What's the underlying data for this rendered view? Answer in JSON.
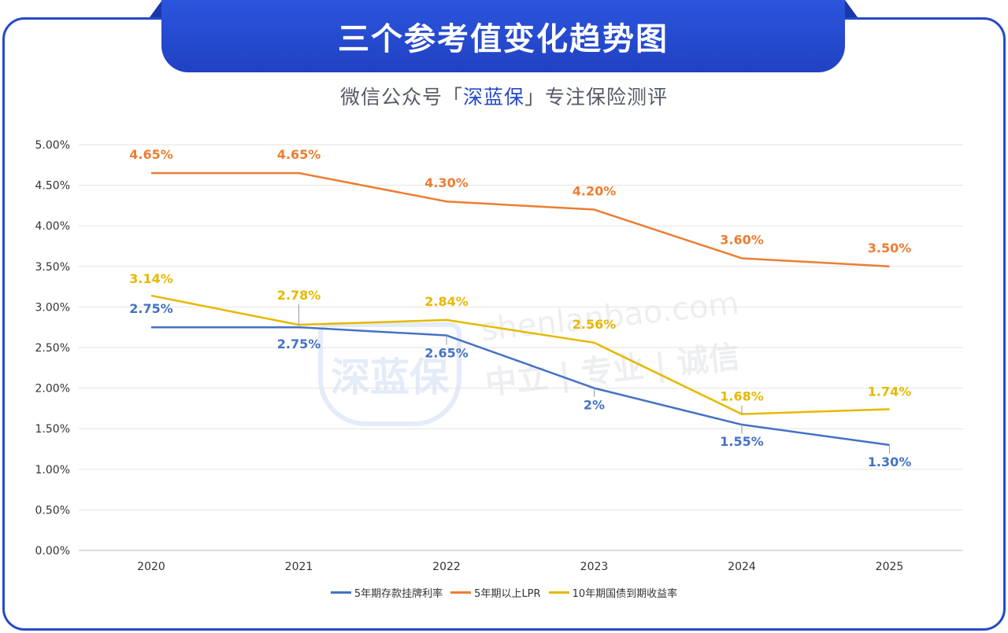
{
  "header": {
    "title": "三个参考值变化趋势图",
    "subtitle_prefix": "微信公众号「",
    "subtitle_brand": "深蓝保",
    "subtitle_suffix": "」专注保险测评"
  },
  "watermark": {
    "logo_text": "深蓝保",
    "domain": "shenlanbao.com",
    "slogan": "中立 | 专业 | 诚信"
  },
  "colors": {
    "deposit": "#4472c4",
    "lpr": "#ed7d31",
    "bond": "#e6b800",
    "accent": "#2449c8"
  },
  "chart_data": {
    "type": "line",
    "categories": [
      "2020",
      "2021",
      "2022",
      "2023",
      "2024",
      "2025"
    ],
    "ylim": [
      0,
      5
    ],
    "yticks": [
      "0.00%",
      "0.50%",
      "1.00%",
      "1.50%",
      "2.00%",
      "2.50%",
      "3.00%",
      "3.50%",
      "4.00%",
      "4.50%",
      "5.00%"
    ],
    "grid": true,
    "legend_position": "bottom",
    "series": [
      {
        "name": "5年期存款挂牌利率",
        "color": "#4472c4",
        "values": [
          2.75,
          2.75,
          2.65,
          2.0,
          1.55,
          1.3
        ],
        "labels": [
          "2.75%",
          "2.75%",
          "2.65%",
          "2%",
          "1.55%",
          "1.30%"
        ]
      },
      {
        "name": "5年期以上LPR",
        "color": "#ed7d31",
        "values": [
          4.65,
          4.65,
          4.3,
          4.2,
          3.6,
          3.5
        ],
        "labels": [
          "4.65%",
          "4.65%",
          "4.30%",
          "4.20%",
          "3.60%",
          "3.50%"
        ]
      },
      {
        "name": "10年期国债到期收益率",
        "color": "#e6b800",
        "values": [
          3.14,
          2.78,
          2.84,
          2.56,
          1.68,
          1.74
        ],
        "labels": [
          "3.14%",
          "2.78%",
          "2.84%",
          "2.56%",
          "1.68%",
          "1.74%"
        ]
      }
    ]
  }
}
